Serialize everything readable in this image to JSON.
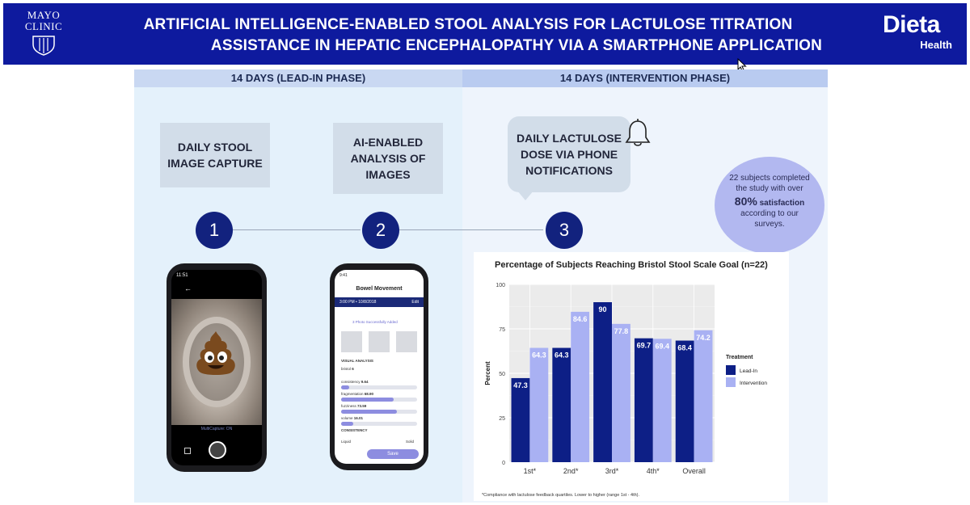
{
  "header": {
    "org_logo_line1": "MAYO",
    "org_logo_line2": "CLINIC",
    "title_line1": "ARTIFICIAL INTELLIGENCE-ENABLED STOOL ANALYSIS FOR LACTULOSE TITRATION",
    "title_line2": "ASSISTANCE IN HEPATIC ENCEPHALOPATHY VIA A SMARTPHONE APPLICATION",
    "brand_word": "Dieta",
    "brand_sub": "Health",
    "color": "#0e1a9e"
  },
  "phases": {
    "left": "14 DAYS (LEAD-IN PHASE)",
    "right": "14 DAYS (INTERVENTION PHASE)"
  },
  "steps": [
    {
      "number": "1",
      "card_line1": "DAILY STOOL",
      "card_line2": "IMAGE CAPTURE",
      "card_line3": ""
    },
    {
      "number": "2",
      "card_line1": "AI-ENABLED",
      "card_line2": "ANALYSIS OF",
      "card_line3": "IMAGES"
    },
    {
      "number": "3",
      "card_line1": "DAILY LACTULOSE",
      "card_line2": "DOSE  VIA PHONE",
      "card_line3": "NOTIFICATIONS"
    }
  ],
  "satisfaction": {
    "line1": "22 subjects completed",
    "line2": "the study with over",
    "percent": "80%",
    "percent_suffix": "satisfaction",
    "line3": "according to our",
    "line4": "surveys."
  },
  "phone1": {
    "status_time": "11:51",
    "caption": "MultiCapture: ON"
  },
  "phone2": {
    "status_time": "9:41",
    "title": "Bowel Movement",
    "datetime": "3:00 PM  •  10/8/2018",
    "edit": "Edit",
    "photos_added": "3 Photo Successfully Added",
    "section_label": "VISUAL ANALYSIS",
    "metrics": [
      {
        "label": "bristol",
        "value": "6"
      },
      {
        "label": "consistency",
        "value": "9.64"
      },
      {
        "label": "fragmentation",
        "value": "68.90"
      },
      {
        "label": "fuzziness",
        "value": "73.59"
      },
      {
        "label": "volume",
        "value": "16.01"
      }
    ],
    "consistency_label": "CONSISTENCY",
    "scale_min": "Liquid",
    "scale_max": "Solid",
    "save": "Save"
  },
  "chart_data": {
    "type": "bar",
    "title": "Percentage of Subjects Reaching Bristol Stool Scale Goal (n=22)",
    "categories": [
      "1st*",
      "2nd*",
      "3rd*",
      "4th*",
      "Overall"
    ],
    "series": [
      {
        "name": "Lead-In",
        "values": [
          47.3,
          64.3,
          90,
          69.7,
          68.4
        ],
        "color": "#0d1f86"
      },
      {
        "name": "Intervention",
        "values": [
          64.3,
          84.6,
          77.8,
          69.4,
          74.2
        ],
        "color": "#a9b1f3"
      }
    ],
    "value_labels": {
      "Lead-In": [
        "47.3",
        "64.3",
        "90",
        "69.7",
        "68.4"
      ],
      "Intervention": [
        "64.3",
        "84.6",
        "77.8",
        "69.4",
        "74.2"
      ]
    },
    "ylabel": "Percent",
    "ylim": [
      0,
      100
    ],
    "yticks": [
      0,
      25,
      50,
      75,
      100
    ],
    "ytick_labels": [
      "0",
      "25",
      "50",
      "75",
      "100"
    ],
    "grid": true,
    "legend_title": "Treatment",
    "legend_position": "right",
    "footnote": "*Compliance with lactulose feedback quartiles. Lower to higher (range 1st - 4th)."
  }
}
